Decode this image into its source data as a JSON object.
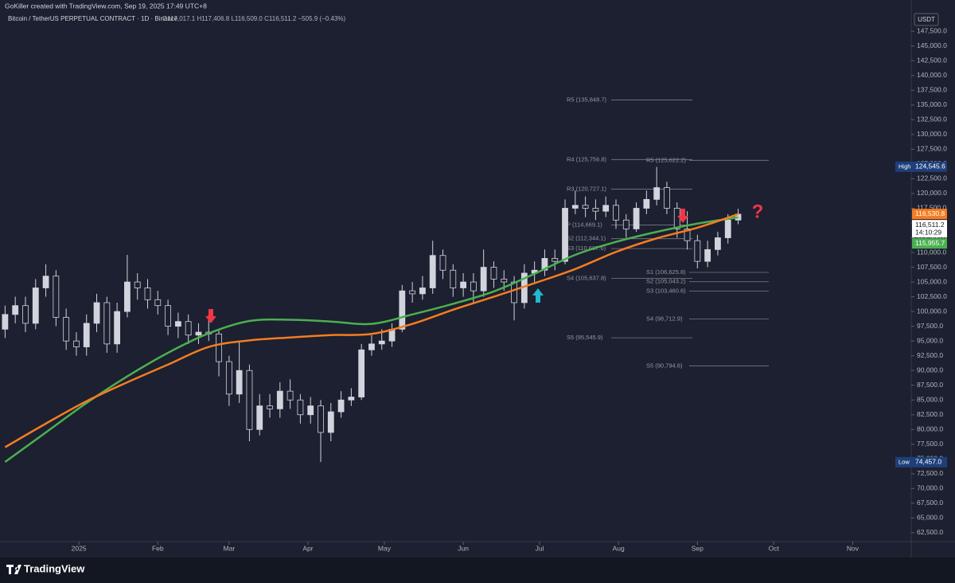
{
  "header": {
    "credit": "GoKiller created with TradingView.com, Sep 19, 2025 17:49 UTC+8",
    "symbol": "Bitcoin / TetherUS PERPETUAL CONTRACT · 1D · Binance",
    "ohlc": "O117,017.1 H117,406.8 L116,509.0 C116,511.2 −505.9 (−0.43%)",
    "currency": "USDT"
  },
  "footer": {
    "brand": "TradingView"
  },
  "chart_data": {
    "type": "candlestick",
    "xlim": [
      -2,
      356
    ],
    "ylim": [
      61000,
      152800
    ],
    "xticks": [
      {
        "value": 29,
        "label": "2025"
      },
      {
        "value": 60,
        "label": "Feb"
      },
      {
        "value": 88,
        "label": "Mar"
      },
      {
        "value": 119,
        "label": "Apr"
      },
      {
        "value": 149,
        "label": "May"
      },
      {
        "value": 180,
        "label": "Jun"
      },
      {
        "value": 210,
        "label": "Jul"
      },
      {
        "value": 241,
        "label": "Aug"
      },
      {
        "value": 272,
        "label": "Sep"
      },
      {
        "value": 302,
        "label": "Oct"
      },
      {
        "value": 333,
        "label": "Nov"
      }
    ],
    "yticks": [
      {
        "value": 62500,
        "label": "62,500.0"
      },
      {
        "value": 65000,
        "label": "65,000.0"
      },
      {
        "value": 67500,
        "label": "67,500.0"
      },
      {
        "value": 70000,
        "label": "70,000.0"
      },
      {
        "value": 72500,
        "label": "72,500.0"
      },
      {
        "value": 75000,
        "label": "75,000.0"
      },
      {
        "value": 77500,
        "label": "77,500.0"
      },
      {
        "value": 80000,
        "label": "80,000.0"
      },
      {
        "value": 82500,
        "label": "82,500.0"
      },
      {
        "value": 85000,
        "label": "85,000.0"
      },
      {
        "value": 87500,
        "label": "87,500.0"
      },
      {
        "value": 90000,
        "label": "90,000.0"
      },
      {
        "value": 92500,
        "label": "92,500.0"
      },
      {
        "value": 95000,
        "label": "95,000.0"
      },
      {
        "value": 97500,
        "label": "97,500.0"
      },
      {
        "value": 100000,
        "label": "100,000.0"
      },
      {
        "value": 102500,
        "label": "102,500.0"
      },
      {
        "value": 105000,
        "label": "105,000.0"
      },
      {
        "value": 107500,
        "label": "107,500.0"
      },
      {
        "value": 110000,
        "label": "110,000.0"
      },
      {
        "value": 112500,
        "label": "112,500.0"
      },
      {
        "value": 115000,
        "label": "115,000.0"
      },
      {
        "value": 117500,
        "label": "117,500.0"
      },
      {
        "value": 120000,
        "label": "120,000.0"
      },
      {
        "value": 122500,
        "label": "122,500.0"
      },
      {
        "value": 125000,
        "label": "125,000.0"
      },
      {
        "value": 127500,
        "label": "127,500.0"
      },
      {
        "value": 130000,
        "label": "130,000.0"
      },
      {
        "value": 132500,
        "label": "132,500.0"
      },
      {
        "value": 135000,
        "label": "135,000.0"
      },
      {
        "value": 137500,
        "label": "137,500.0"
      },
      {
        "value": 140000,
        "label": "140,000.0"
      },
      {
        "value": 142500,
        "label": "142,500.0"
      },
      {
        "value": 145000,
        "label": "145,000.0"
      },
      {
        "value": 147500,
        "label": "147,500.0"
      }
    ],
    "x": [
      0,
      4,
      8,
      12,
      16,
      20,
      24,
      28,
      32,
      36,
      40,
      44,
      48,
      52,
      56,
      60,
      64,
      68,
      72,
      76,
      80,
      84,
      88,
      92,
      96,
      100,
      104,
      108,
      112,
      116,
      120,
      124,
      128,
      132,
      136,
      140,
      144,
      148,
      152,
      156,
      160,
      164,
      168,
      172,
      176,
      180,
      184,
      188,
      192,
      196,
      200,
      204,
      208,
      212,
      216,
      220,
      224,
      228,
      232,
      236,
      240,
      244,
      248,
      252,
      256,
      260,
      264,
      268,
      272,
      276,
      280,
      284,
      288
    ],
    "open": [
      97000,
      99500,
      101000,
      98000,
      104000,
      106000,
      99000,
      95000,
      94000,
      98000,
      101500,
      94500,
      100000,
      105000,
      104000,
      102000,
      101000,
      97500,
      98300,
      96000,
      96500,
      96200,
      91500,
      86000,
      90000,
      80000,
      84000,
      83500,
      86500,
      85000,
      82500,
      84000,
      79500,
      83000,
      85000,
      85500,
      93500,
      94500,
      95000,
      97000,
      103500,
      103000,
      104000,
      109500,
      107000,
      104000,
      105000,
      103500,
      107500,
      105500,
      105000,
      101500,
      106500,
      107000,
      109000,
      108500,
      117500,
      118000,
      117500,
      117000,
      118000,
      115500,
      114000,
      117500,
      119000,
      121000,
      117500,
      114000,
      112000,
      108500,
      110500,
      112500,
      115500
    ],
    "high": [
      101000,
      102500,
      102500,
      105500,
      108000,
      107000,
      100500,
      96500,
      99500,
      103000,
      102500,
      101500,
      109600,
      106500,
      105500,
      103500,
      102000,
      99800,
      99500,
      98000,
      99500,
      97000,
      92500,
      95000,
      91000,
      86000,
      86000,
      88000,
      88500,
      86000,
      85500,
      85000,
      84500,
      86500,
      87000,
      94500,
      96000,
      97000,
      98000,
      104500,
      105000,
      106000,
      112000,
      110500,
      108000,
      106500,
      106500,
      110500,
      108500,
      107000,
      106000,
      108000,
      108500,
      110500,
      110500,
      119000,
      120500,
      119500,
      119000,
      119500,
      119000,
      116500,
      118500,
      120500,
      124500,
      122000,
      118500,
      117000,
      113000,
      112000,
      113500,
      116500,
      117400
    ],
    "low": [
      95500,
      98000,
      96500,
      97000,
      102500,
      97500,
      93500,
      92500,
      92500,
      96500,
      93000,
      93000,
      99000,
      102000,
      100500,
      99500,
      96000,
      95500,
      94500,
      94500,
      95000,
      89000,
      84000,
      84500,
      78000,
      79000,
      82000,
      82000,
      83500,
      81000,
      81000,
      74500,
      78000,
      82000,
      84000,
      85000,
      92500,
      93500,
      94000,
      96500,
      101500,
      102000,
      103000,
      105500,
      102500,
      102500,
      101500,
      102500,
      104000,
      103500,
      98500,
      100500,
      105000,
      106000,
      107000,
      108000,
      116500,
      116000,
      115500,
      116000,
      114000,
      112500,
      113500,
      116500,
      118000,
      116500,
      112500,
      110500,
      107300,
      107500,
      109500,
      111500,
      114800
    ],
    "close": [
      99500,
      101000,
      98000,
      104000,
      106000,
      99000,
      95000,
      94000,
      98000,
      101500,
      94500,
      100000,
      105000,
      104000,
      102000,
      101000,
      97500,
      98300,
      96000,
      96500,
      96200,
      91500,
      86000,
      90000,
      80000,
      84000,
      83500,
      86500,
      85000,
      82500,
      84000,
      79500,
      83000,
      85000,
      85500,
      93500,
      94500,
      95000,
      97000,
      103500,
      103000,
      104000,
      109500,
      107000,
      104000,
      105000,
      103500,
      107500,
      105500,
      105000,
      101500,
      106500,
      107000,
      109000,
      108500,
      117500,
      118000,
      117500,
      117000,
      118000,
      115500,
      114000,
      117500,
      119000,
      121000,
      117500,
      114000,
      112000,
      108500,
      110500,
      112500,
      115500,
      116500
    ],
    "up_color": "#d1d4dc",
    "down_color": "#1c2030",
    "lines": [
      {
        "color": "#4caf50",
        "x": [
          0,
          16,
          32,
          48,
          64,
          80,
          96,
          112,
          128,
          144,
          160,
          176,
          192,
          208,
          224,
          240,
          256,
          272,
          288
        ],
        "values": [
          74500,
          79500,
          84500,
          89000,
          93000,
          96300,
          98400,
          98600,
          98300,
          97900,
          99500,
          101300,
          103400,
          106400,
          109600,
          111800,
          113500,
          114900,
          115960
        ]
      },
      {
        "color": "#f57c20",
        "x": [
          0,
          16,
          32,
          48,
          64,
          80,
          96,
          112,
          128,
          144,
          160,
          176,
          192,
          208,
          224,
          240,
          256,
          272,
          288
        ],
        "values": [
          77000,
          81000,
          84800,
          88000,
          91000,
          94000,
          95100,
          95600,
          96000,
          96200,
          97900,
          100300,
          102500,
          104800,
          107200,
          110100,
          112400,
          114200,
          116500
        ]
      }
    ],
    "pivots": [
      [
        {
          "value": 135848.7,
          "label": "R5 (135,848.7)"
        },
        {
          "value": 125756.8,
          "label": "R4 (125,756.8)"
        },
        {
          "value": 120727.1,
          "label": "R3 (120,727.1)"
        },
        {
          "value": 114669.1,
          "label": "P (114,669.1)"
        },
        {
          "value": 112344.1,
          "label": "S2 (112,344.1)"
        },
        {
          "value": 110667.6,
          "label": "S3 (110,667.6)"
        },
        {
          "value": 105637.8,
          "label": "S4 (105,637.8)"
        },
        {
          "value": 95545.9,
          "label": "S5 (95,545.9)"
        }
      ],
      [
        {
          "value": 125622.2,
          "label": "R5 (125,622.2)"
        },
        {
          "value": 106625.8,
          "label": "S1 (106,625.8)"
        },
        {
          "value": 105043.2,
          "label": "S2 (105,043.2)"
        },
        {
          "value": 103460.6,
          "label": "S3 (103,460.6)"
        },
        {
          "value": 98712.9,
          "label": "S4 (98,712.9)"
        },
        {
          "value": 90794.6,
          "label": "S5 (90,794.6)"
        }
      ]
    ],
    "price_labels": [
      {
        "value": 124545.6,
        "label": "124,545.6",
        "tag": "High",
        "color": "#1e3f7a"
      },
      {
        "value": 74457.0,
        "label": "74,457.0",
        "tag": "Low",
        "color": "#1e3f7a"
      },
      {
        "value": 116530.8,
        "label": "116,530.8",
        "color": "#f57c20"
      },
      {
        "value": 116511.2,
        "label": "116,511.2",
        "sub": "14:10:29",
        "color": "#ffffff"
      },
      {
        "value": 115955.7,
        "label": "115,955.7",
        "color": "#4caf50"
      }
    ],
    "annotation": "?"
  }
}
